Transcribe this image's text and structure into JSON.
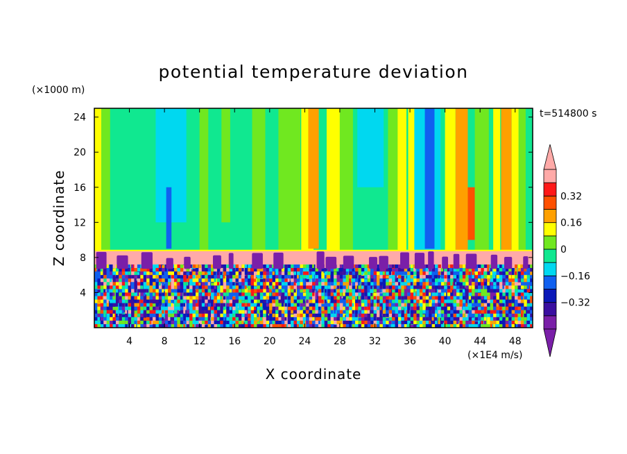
{
  "chart_data": {
    "type": "heatmap",
    "title": "potential temperature deviation",
    "xlabel": "X coordinate",
    "ylabel": "Z coordinate",
    "x_unit": "(×1E4 m/s)",
    "y_unit": "(×1000 m)",
    "time_label": "t=514800 s",
    "xlim": [
      0,
      50
    ],
    "ylim": [
      0,
      25
    ],
    "x_ticks": [
      "4",
      "8",
      "12",
      "16",
      "20",
      "24",
      "28",
      "32",
      "36",
      "40",
      "44",
      "48"
    ],
    "y_ticks": [
      "4",
      "8",
      "12",
      "16",
      "20",
      "24"
    ],
    "colorbar": {
      "levels": [
        -0.48,
        -0.4,
        -0.32,
        -0.24,
        -0.16,
        -0.08,
        0,
        0.08,
        0.16,
        0.24,
        0.32,
        0.4
      ],
      "colors": [
        "#7a1fa8",
        "#3a0fa0",
        "#0a18b8",
        "#1060f0",
        "#00d8f0",
        "#10e890",
        "#70e820",
        "#ffff00",
        "#ffa000",
        "#ff5000",
        "#ff1818",
        "#ffaaa8"
      ],
      "labels": [
        "0.32",
        "0.16",
        "0",
        "−0.16",
        "−0.32"
      ],
      "label_values": [
        0.32,
        0.16,
        0,
        -0.16,
        -0.32
      ],
      "extend": "both"
    },
    "layers": {
      "turbulent_layer_top": 7.2,
      "inversion_band": [
        7.2,
        8.8
      ]
    },
    "grid": false,
    "legend": "colorbar-right"
  }
}
